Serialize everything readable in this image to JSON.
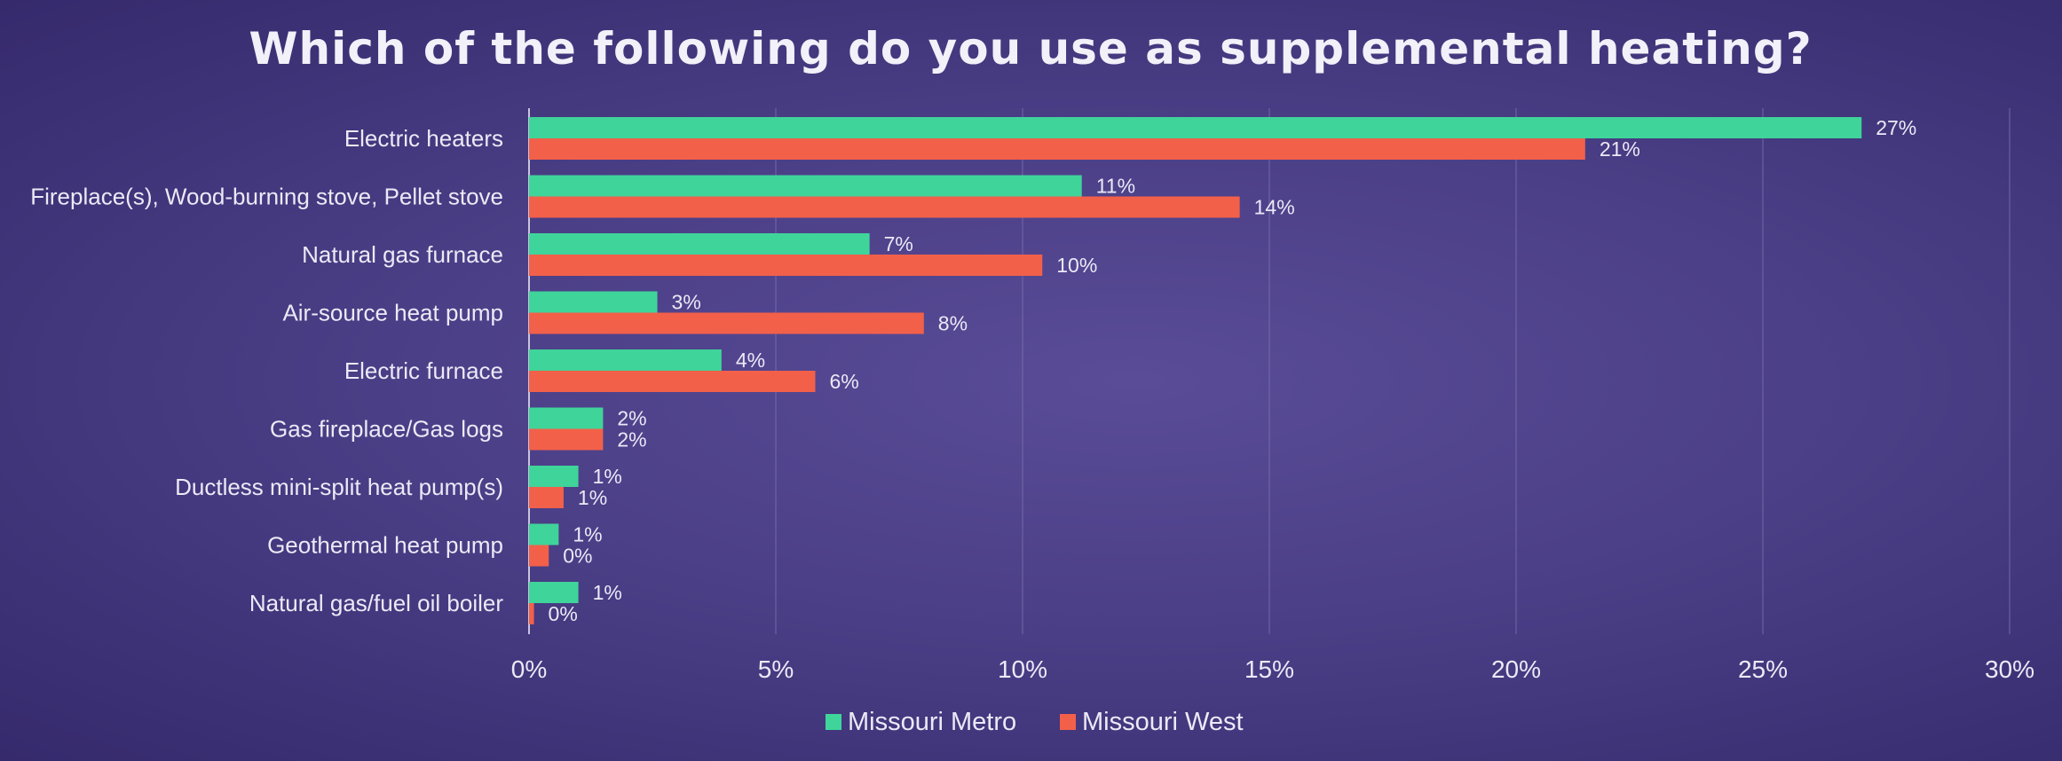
{
  "chart_data": {
    "type": "bar",
    "orientation": "horizontal",
    "title": "Which of the following do you use as supplemental heating?",
    "categories": [
      "Electric heaters",
      "Fireplace(s), Wood-burning stove, Pellet stove",
      "Natural gas furnace",
      "Air-source heat pump",
      "Electric furnace",
      "Gas fireplace/Gas logs",
      "Ductless mini-split heat pump(s)",
      "Geothermal heat pump",
      "Natural gas/fuel oil  boiler"
    ],
    "series": [
      {
        "name": "Missouri Metro",
        "color": "#3fd49a",
        "values": [
          27,
          11.2,
          6.9,
          2.6,
          3.9,
          1.5,
          1.0,
          0.6,
          1.0
        ],
        "labels": [
          "27%",
          "11%",
          "7%",
          "3%",
          "4%",
          "2%",
          "1%",
          "1%",
          "1%"
        ]
      },
      {
        "name": "Missouri West",
        "color": "#f2604a",
        "values": [
          21.4,
          14.4,
          10.4,
          8.0,
          5.8,
          1.5,
          0.7,
          0.4,
          0.1
        ],
        "labels": [
          "21%",
          "14%",
          "10%",
          "8%",
          "6%",
          "2%",
          "1%",
          "0%",
          "0%"
        ]
      }
    ],
    "xlim": [
      0,
      30
    ],
    "x_ticks": [
      "0%",
      "5%",
      "10%",
      "15%",
      "20%",
      "25%",
      "30%"
    ],
    "x_tick_values": [
      0,
      5,
      10,
      15,
      20,
      25,
      30
    ],
    "grid": true,
    "legend_position": "bottom"
  }
}
